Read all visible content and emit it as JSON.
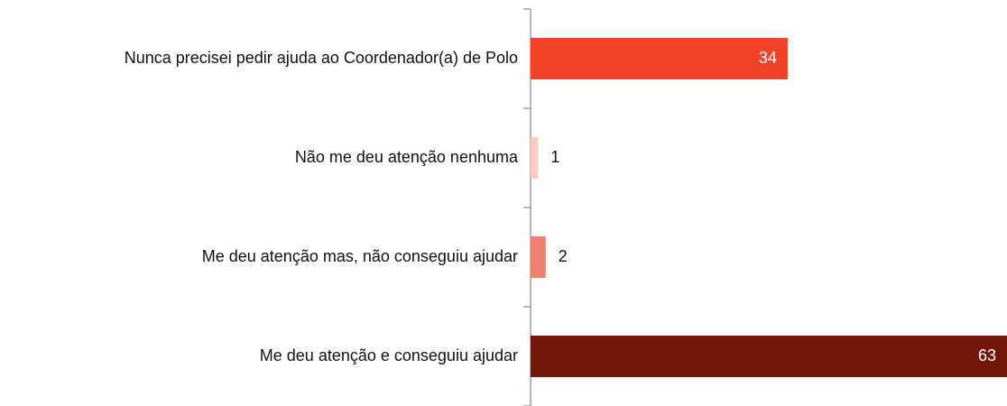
{
  "chart_data": {
    "type": "barh",
    "categories": [
      "Nunca precisei pedir ajuda ao Coordenador(a) de Polo",
      "Não me deu atenção nenhuma",
      "Me deu atenção mas, não conseguiu ajudar",
      "Me deu atenção e conseguiu ajudar"
    ],
    "values": [
      34,
      1,
      2,
      63
    ],
    "colors": [
      "#f0432a",
      "#f8cbc4",
      "#f0806f",
      "#74180b"
    ]
  }
}
